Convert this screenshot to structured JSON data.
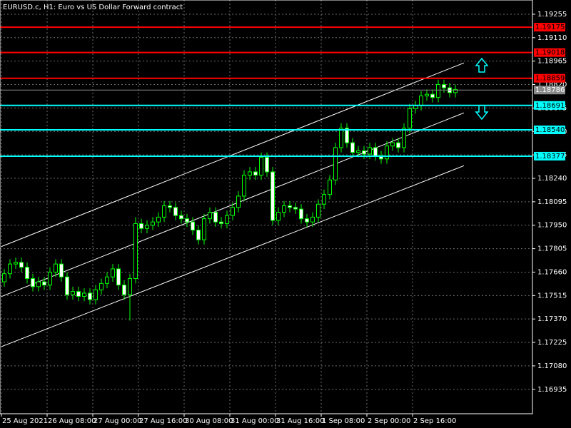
{
  "chart_data": {
    "type": "candlestick",
    "title": "EURUSD.c, H1:  Euro vs US Dollar Forward contract",
    "x": [
      1,
      3,
      5,
      7,
      9,
      11,
      13,
      15,
      17,
      19,
      21,
      23,
      25,
      27,
      29,
      31,
      33,
      35,
      37,
      39,
      41,
      43,
      45,
      47,
      49,
      51,
      53,
      55,
      57,
      59,
      61,
      63,
      65,
      67,
      69,
      71,
      73,
      75,
      77,
      79,
      81,
      83,
      85,
      87,
      89,
      91,
      93,
      95,
      97,
      99,
      101,
      103,
      105,
      107,
      109,
      111,
      113,
      115,
      117,
      119,
      121,
      123,
      125,
      127,
      129,
      131,
      133,
      135,
      137,
      139,
      141,
      143,
      145,
      147,
      149,
      151,
      153,
      155,
      157,
      159
    ],
    "open": [
      1.176,
      1.1765,
      1.1771,
      1.1772,
      1.1769,
      1.1762,
      1.1757,
      1.176,
      1.1758,
      1.1766,
      1.1771,
      1.1763,
      1.1752,
      1.1754,
      1.1751,
      1.1753,
      1.1749,
      1.1755,
      1.1759,
      1.1763,
      1.1768,
      1.1758,
      1.1752,
      1.1762,
      1.1796,
      1.1793,
      1.1795,
      1.1797,
      1.18,
      1.1807,
      1.1806,
      1.1801,
      1.1799,
      1.1797,
      1.1792,
      1.1786,
      1.1799,
      1.1803,
      1.1797,
      1.1796,
      1.1801,
      1.1806,
      1.1813,
      1.1826,
      1.1828,
      1.1826,
      1.1837,
      1.1828,
      1.1798,
      1.1803,
      1.1807,
      1.1806,
      1.1805,
      1.1799,
      1.1797,
      1.18,
      1.1808,
      1.1814,
      1.1823,
      1.1843,
      1.1855,
      1.1846,
      1.184,
      1.1841,
      1.1839,
      1.1843,
      1.1838,
      1.1836,
      1.1844,
      1.1846,
      1.1843,
      1.1855,
      1.1867,
      1.1869,
      1.1875,
      1.1876,
      1.1874,
      1.1882,
      1.188,
      1.1877
    ],
    "high": [
      1.1768,
      1.1774,
      1.1775,
      1.1775,
      1.1772,
      1.1765,
      1.1763,
      1.1763,
      1.1769,
      1.1774,
      1.1774,
      1.1766,
      1.1757,
      1.1757,
      1.1756,
      1.1756,
      1.1758,
      1.1762,
      1.1766,
      1.1771,
      1.1771,
      1.1761,
      1.1765,
      1.18,
      1.1799,
      1.1798,
      1.18,
      1.1803,
      1.181,
      1.181,
      1.1809,
      1.1804,
      1.1802,
      1.18,
      1.1795,
      1.1802,
      1.1806,
      1.1806,
      1.18,
      1.1804,
      1.1809,
      1.1816,
      1.1829,
      1.1831,
      1.1831,
      1.184,
      1.184,
      1.1831,
      1.1806,
      1.181,
      1.181,
      1.1809,
      1.1808,
      1.1802,
      1.1803,
      1.1811,
      1.1817,
      1.1826,
      1.1846,
      1.1858,
      1.1858,
      1.1849,
      1.1844,
      1.1844,
      1.1846,
      1.1846,
      1.1841,
      1.1847,
      1.1849,
      1.1849,
      1.1858,
      1.187,
      1.1872,
      1.1878,
      1.1879,
      1.1879,
      1.1885,
      1.1885,
      1.1883,
      1.1882
    ],
    "low": [
      1.1757,
      1.1762,
      1.1768,
      1.1766,
      1.1759,
      1.1754,
      1.1754,
      1.1755,
      1.1755,
      1.1763,
      1.176,
      1.1749,
      1.1749,
      1.1748,
      1.1748,
      1.1746,
      1.1746,
      1.1752,
      1.1756,
      1.176,
      1.1755,
      1.1749,
      1.1736,
      1.1759,
      1.179,
      1.179,
      1.1792,
      1.1794,
      1.1797,
      1.1803,
      1.1798,
      1.1796,
      1.1794,
      1.1789,
      1.1783,
      1.1783,
      1.1796,
      1.1794,
      1.1793,
      1.1793,
      1.1798,
      1.1803,
      1.181,
      1.1823,
      1.1823,
      1.1823,
      1.1825,
      1.1795,
      1.1795,
      1.18,
      1.1803,
      1.1802,
      1.1796,
      1.1794,
      1.1794,
      1.1797,
      1.1805,
      1.1811,
      1.182,
      1.184,
      1.1843,
      1.1837,
      1.1837,
      1.1836,
      1.1836,
      1.1835,
      1.1833,
      1.1833,
      1.1841,
      1.184,
      1.184,
      1.1852,
      1.1864,
      1.1866,
      1.1872,
      1.1871,
      1.1871,
      1.1877,
      1.1874,
      1.1874
    ],
    "close": [
      1.1765,
      1.1771,
      1.1772,
      1.1769,
      1.1762,
      1.1757,
      1.176,
      1.1758,
      1.1766,
      1.1771,
      1.1763,
      1.1752,
      1.1754,
      1.1751,
      1.1753,
      1.1749,
      1.1755,
      1.1759,
      1.1763,
      1.1768,
      1.1758,
      1.1752,
      1.1762,
      1.1796,
      1.1793,
      1.1795,
      1.1797,
      1.18,
      1.1807,
      1.1806,
      1.1801,
      1.1799,
      1.1797,
      1.1792,
      1.1786,
      1.1799,
      1.1803,
      1.1797,
      1.1796,
      1.1801,
      1.1806,
      1.1813,
      1.1826,
      1.1828,
      1.1826,
      1.1837,
      1.1828,
      1.1798,
      1.1803,
      1.1807,
      1.1806,
      1.1805,
      1.1799,
      1.1797,
      1.18,
      1.1808,
      1.1814,
      1.1823,
      1.1843,
      1.1855,
      1.1846,
      1.184,
      1.1841,
      1.1839,
      1.1843,
      1.1838,
      1.1836,
      1.1844,
      1.1846,
      1.1843,
      1.1855,
      1.1867,
      1.1869,
      1.1875,
      1.1876,
      1.1874,
      1.1882,
      1.188,
      1.1877,
      1.1879
    ],
    "color": "#00ff00",
    "xlim": [
      -0.5,
      186
    ],
    "xticks": [
      {
        "value": 0,
        "label": "25 Aug 2021"
      },
      {
        "value": 16,
        "label": "26 Aug 08:00"
      },
      {
        "value": 32,
        "label": "27 Aug 00:00"
      },
      {
        "value": 48,
        "label": "27 Aug 16:00"
      },
      {
        "value": 64,
        "label": "30 Aug 08:00"
      },
      {
        "value": 80,
        "label": "31 Aug 00:00"
      },
      {
        "value": 96,
        "label": "31 Aug 16:00"
      },
      {
        "value": 112,
        "label": "1 Sep 08:00"
      },
      {
        "value": 128,
        "label": "2 Sep 00:00"
      },
      {
        "value": 144,
        "label": "2 Sep 16:00"
      }
    ],
    "ylim": [
      1.16784,
      1.19343
    ],
    "yticks": [
      1.19255,
      {
        "value": 1.1911,
        "label": "1.19110"
      },
      1.18965,
      {
        "value": 1.1882,
        "label": "1.18820"
      },
      1.18675,
      {
        "value": 1.1853,
        "label": "1.18530"
      },
      1.18385,
      {
        "value": 1.1824,
        "label": "1.18240"
      },
      1.18095,
      {
        "value": 1.1795,
        "label": "1.17950"
      },
      1.17805,
      {
        "value": 1.1766,
        "label": "1.17660"
      },
      1.17515,
      {
        "value": 1.1737,
        "label": "1.17370"
      },
      1.17225,
      {
        "value": 1.1708,
        "label": "1.17080"
      },
      1.16935
    ],
    "grid": true,
    "levels": [
      {
        "value": 1.19175,
        "color": "#ff0000"
      },
      {
        "value": 1.19018,
        "color": "#ff0000"
      },
      {
        "value": 1.18859,
        "color": "#ff0000"
      },
      {
        "value": 1.18691,
        "color": "#00ffff"
      },
      {
        "value": 1.1854,
        "label": "1.18540",
        "color": "#00ffff"
      },
      {
        "value": 1.18377,
        "color": "#00ffff"
      }
    ],
    "current_price": {
      "value": 1.18786,
      "color": "#8a8a8a"
    },
    "channels": [
      {
        "x": [
          0,
          162
        ],
        "y": [
          1.17818,
          1.18954
        ]
      },
      {
        "x": [
          0,
          162
        ],
        "y": [
          1.17509,
          1.18645
        ]
      },
      {
        "x": [
          0,
          162
        ],
        "y": [
          1.17199,
          1.18318
        ]
      }
    ]
  }
}
